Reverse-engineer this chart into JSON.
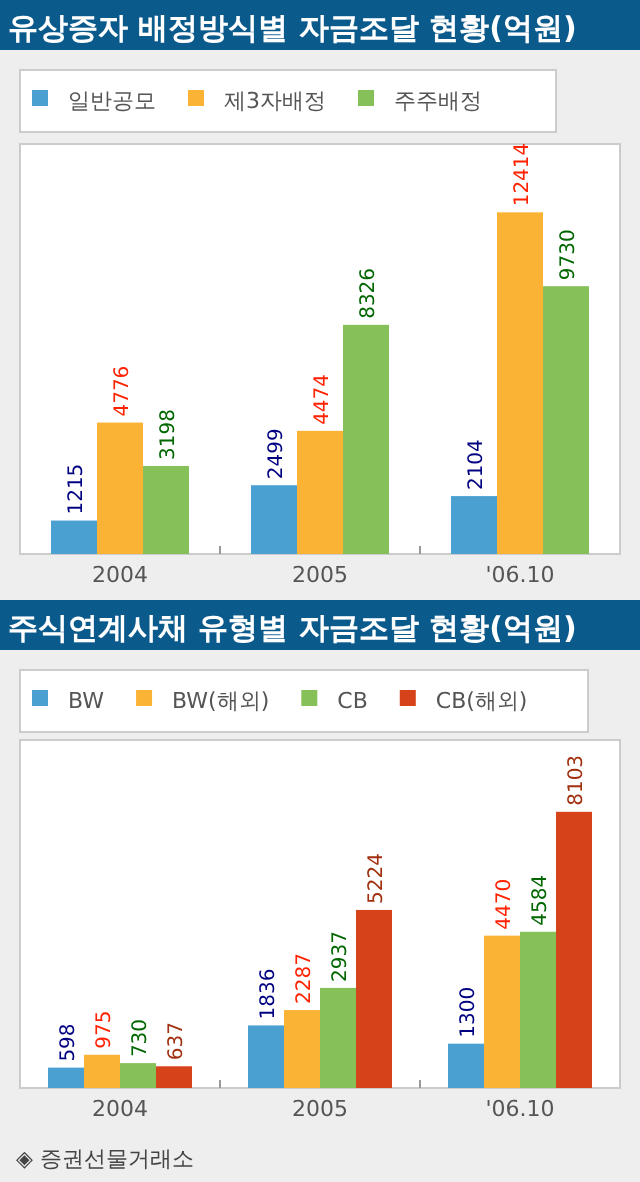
{
  "chart_data": [
    {
      "type": "bar",
      "title": "유상증자 배정방식별 자금조달 현황(억원)",
      "categories": [
        "2004",
        "2005",
        "'06.10"
      ],
      "data_labels": true,
      "legend": "top",
      "series": [
        {
          "name": "일반공모",
          "color": "#4aa0d0",
          "values": [
            1215,
            2499,
            2104
          ]
        },
        {
          "name": "제3자배정",
          "color": "#fbb336",
          "values": [
            4776,
            4474,
            12414
          ]
        },
        {
          "name": "주주배정",
          "color": "#86c059",
          "values": [
            3198,
            8326,
            9730
          ]
        }
      ]
    },
    {
      "type": "bar",
      "title": "주식연계사채 유형별 자금조달 현황(억원)",
      "categories": [
        "2004",
        "2005",
        "'06.10"
      ],
      "data_labels": true,
      "legend": "top",
      "annotations": [
        "◈ 증권선물거래소"
      ],
      "series": [
        {
          "name": "BW",
          "color": "#4aa0d0",
          "values": [
            598,
            1836,
            1300
          ]
        },
        {
          "name": "BW(해외)",
          "color": "#fbb336",
          "values": [
            975,
            2287,
            4470
          ]
        },
        {
          "name": "CB",
          "color": "#86c059",
          "values": [
            730,
            2937,
            4584
          ]
        },
        {
          "name": "CB(해외)",
          "color": "#d6431a",
          "values": [
            637,
            5224,
            8103
          ]
        }
      ]
    }
  ]
}
